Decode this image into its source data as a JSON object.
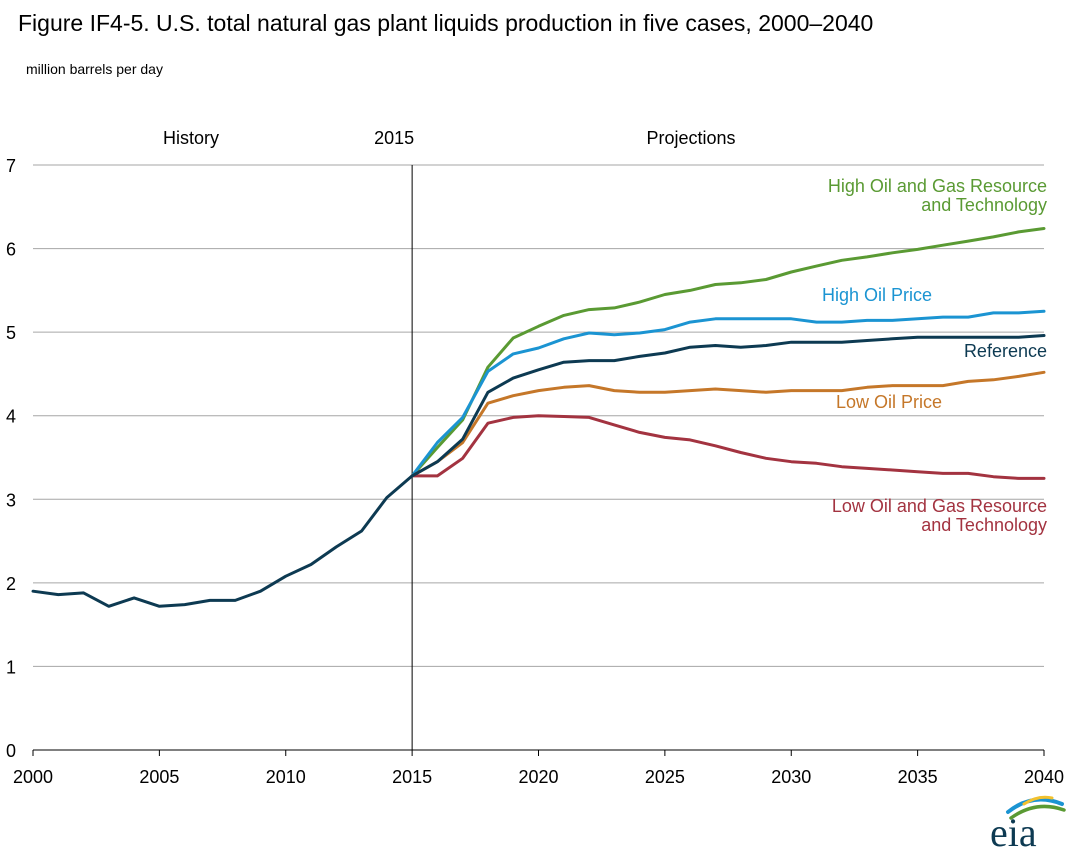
{
  "title": "Figure IF4-5. U.S. total natural gas plant liquids production in five cases, 2000–2040",
  "unit_label": "million barrels per day",
  "annotations": {
    "history": "History",
    "divider": "2015",
    "projections": "Projections"
  },
  "logo_text": "eia",
  "chart_data": {
    "type": "line",
    "xlim": [
      2000,
      2040
    ],
    "ylim": [
      0,
      7
    ],
    "grid": true,
    "x_ticks": [
      2000,
      2005,
      2010,
      2015,
      2020,
      2025,
      2030,
      2035,
      2040
    ],
    "y_ticks": [
      0,
      1,
      2,
      3,
      4,
      5,
      6,
      7
    ],
    "divider_year": 2015,
    "history": {
      "name": "History",
      "color": "#0d3a52",
      "x": [
        2000,
        2001,
        2002,
        2003,
        2004,
        2005,
        2006,
        2007,
        2008,
        2009,
        2010,
        2011,
        2012,
        2013,
        2014,
        2015
      ],
      "values": [
        1.9,
        1.86,
        1.88,
        1.72,
        1.82,
        1.72,
        1.74,
        1.79,
        1.79,
        1.9,
        2.08,
        2.22,
        2.43,
        2.62,
        3.02,
        3.28
      ]
    },
    "series": [
      {
        "name": "High Oil and Gas Resource and Technology",
        "label_lines": [
          "High Oil and Gas Resource",
          "and Technology"
        ],
        "color": "#5a9a33",
        "x": [
          2015,
          2016,
          2017,
          2018,
          2019,
          2020,
          2021,
          2022,
          2023,
          2024,
          2025,
          2026,
          2027,
          2028,
          2029,
          2030,
          2031,
          2032,
          2033,
          2034,
          2035,
          2036,
          2037,
          2038,
          2039,
          2040
        ],
        "values": [
          3.28,
          3.62,
          3.95,
          4.58,
          4.93,
          5.07,
          5.2,
          5.27,
          5.29,
          5.36,
          5.45,
          5.5,
          5.57,
          5.59,
          5.63,
          5.72,
          5.79,
          5.86,
          5.9,
          5.95,
          5.99,
          6.04,
          6.09,
          6.14,
          6.2,
          6.24
        ]
      },
      {
        "name": "High Oil Price",
        "label_lines": [
          "High Oil Price"
        ],
        "color": "#1b94d2",
        "x": [
          2015,
          2016,
          2017,
          2018,
          2019,
          2020,
          2021,
          2022,
          2023,
          2024,
          2025,
          2026,
          2027,
          2028,
          2029,
          2030,
          2031,
          2032,
          2033,
          2034,
          2035,
          2036,
          2037,
          2038,
          2039,
          2040
        ],
        "values": [
          3.28,
          3.68,
          3.98,
          4.53,
          4.74,
          4.81,
          4.92,
          4.99,
          4.97,
          4.99,
          5.03,
          5.12,
          5.16,
          5.16,
          5.16,
          5.16,
          5.12,
          5.12,
          5.14,
          5.14,
          5.16,
          5.18,
          5.18,
          5.23,
          5.23,
          5.25
        ]
      },
      {
        "name": "Reference",
        "label_lines": [
          "Reference"
        ],
        "color": "#0d3a52",
        "x": [
          2015,
          2016,
          2017,
          2018,
          2019,
          2020,
          2021,
          2022,
          2023,
          2024,
          2025,
          2026,
          2027,
          2028,
          2029,
          2030,
          2031,
          2032,
          2033,
          2034,
          2035,
          2036,
          2037,
          2038,
          2039,
          2040
        ],
        "values": [
          3.28,
          3.45,
          3.72,
          4.28,
          4.45,
          4.55,
          4.64,
          4.66,
          4.66,
          4.71,
          4.75,
          4.82,
          4.84,
          4.82,
          4.84,
          4.88,
          4.88,
          4.88,
          4.9,
          4.92,
          4.94,
          4.94,
          4.94,
          4.94,
          4.94,
          4.96
        ]
      },
      {
        "name": "Low Oil Price",
        "label_lines": [
          "Low Oil Price"
        ],
        "color": "#c57729",
        "x": [
          2015,
          2016,
          2017,
          2018,
          2019,
          2020,
          2021,
          2022,
          2023,
          2024,
          2025,
          2026,
          2027,
          2028,
          2029,
          2030,
          2031,
          2032,
          2033,
          2034,
          2035,
          2036,
          2037,
          2038,
          2039,
          2040
        ],
        "values": [
          3.28,
          3.45,
          3.68,
          4.15,
          4.24,
          4.3,
          4.34,
          4.36,
          4.3,
          4.28,
          4.28,
          4.3,
          4.32,
          4.3,
          4.28,
          4.3,
          4.3,
          4.3,
          4.34,
          4.36,
          4.36,
          4.36,
          4.41,
          4.43,
          4.47,
          4.52
        ]
      },
      {
        "name": "Low Oil and Gas Resource and Technology",
        "label_lines": [
          "Low Oil and Gas Resource",
          "and Technology"
        ],
        "color": "#a33340",
        "x": [
          2015,
          2016,
          2017,
          2018,
          2019,
          2020,
          2021,
          2022,
          2023,
          2024,
          2025,
          2026,
          2027,
          2028,
          2029,
          2030,
          2031,
          2032,
          2033,
          2034,
          2035,
          2036,
          2037,
          2038,
          2039,
          2040
        ],
        "values": [
          3.28,
          3.28,
          3.49,
          3.91,
          3.98,
          4.0,
          3.99,
          3.98,
          3.89,
          3.8,
          3.74,
          3.71,
          3.64,
          3.56,
          3.49,
          3.45,
          3.43,
          3.39,
          3.37,
          3.35,
          3.33,
          3.31,
          3.31,
          3.27,
          3.25,
          3.25
        ]
      }
    ]
  }
}
